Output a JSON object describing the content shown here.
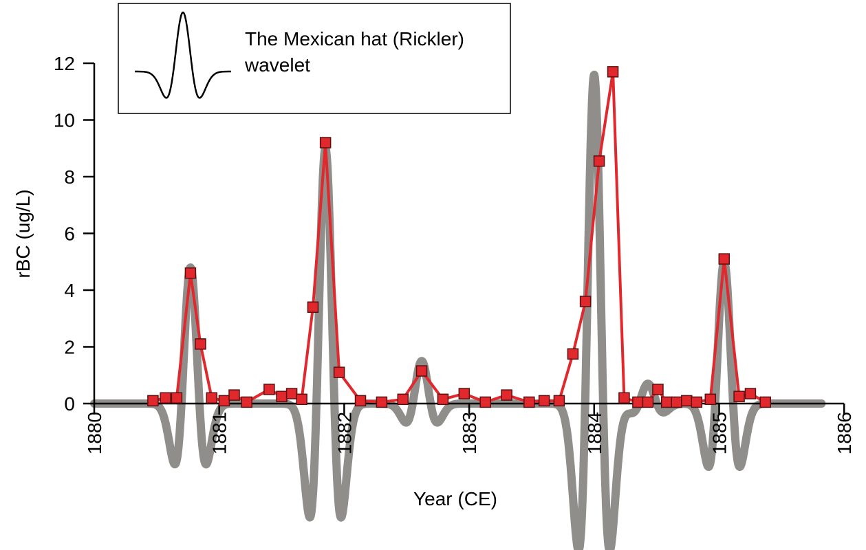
{
  "chart_data": {
    "type": "line",
    "xlabel": "Year (CE)",
    "ylabel": "rBC (ug/L)",
    "xlim": [
      1880,
      1886
    ],
    "ylim": [
      0,
      12
    ],
    "x_ticks": [
      "1880",
      "1881",
      "1882",
      "1883",
      "1884",
      "1885",
      "1886"
    ],
    "y_ticks": [
      "0",
      "2",
      "4",
      "6",
      "8",
      "10",
      "12"
    ],
    "legend": {
      "label": "The Mexican hat (Rickler) wavelet",
      "line1": "The Mexican hat (Rickler)",
      "line2": "wavelet",
      "placement": "top-left"
    },
    "grid": false,
    "colors": {
      "measured": "#e0282d",
      "marker_edge": "#5a1010",
      "wavelet": "#8a8884"
    },
    "series": [
      {
        "x": [
          1880.47,
          1880.57,
          1880.66,
          1880.77,
          1880.85,
          1880.94,
          1881.04,
          1881.12,
          1881.22,
          1881.4,
          1881.5,
          1881.58,
          1881.66,
          1881.75,
          1881.85,
          1881.96,
          1882.13,
          1882.3,
          1882.47,
          1882.62,
          1882.79,
          1882.96,
          1883.13,
          1883.3,
          1883.48,
          1883.6,
          1883.72,
          1883.83,
          1883.93,
          1884.04,
          1884.15,
          1884.24,
          1884.35,
          1884.43,
          1884.51,
          1884.58,
          1884.66,
          1884.74,
          1884.82,
          1884.93,
          1885.04,
          1885.16,
          1885.25,
          1885.37
        ],
        "y": [
          0.1,
          0.2,
          0.2,
          4.6,
          2.1,
          0.2,
          0.1,
          0.3,
          0.05,
          0.5,
          0.25,
          0.35,
          0.15,
          3.4,
          9.2,
          1.1,
          0.1,
          0.05,
          0.15,
          1.15,
          0.15,
          0.35,
          0.05,
          0.3,
          0.05,
          0.1,
          0.1,
          1.75,
          3.6,
          8.55,
          11.7,
          0.2,
          0.05,
          0.05,
          0.5,
          0.05,
          0.05,
          0.1,
          0.05,
          0.15,
          5.1,
          0.25,
          0.35,
          0.05
        ]
      },
      {
        "peaks": [
          {
            "x": 1880.77,
            "amplitude": 4.8
          },
          {
            "x": 1881.85,
            "amplitude": 9.0
          },
          {
            "x": 1882.62,
            "amplitude": 1.5
          },
          {
            "x": 1884.0,
            "amplitude": 11.6
          },
          {
            "x": 1884.43,
            "amplitude": 0.7
          },
          {
            "x": 1885.04,
            "amplitude": 5.0
          }
        ],
        "baseline_range": [
          1880,
          1885.82
        ]
      }
    ]
  }
}
